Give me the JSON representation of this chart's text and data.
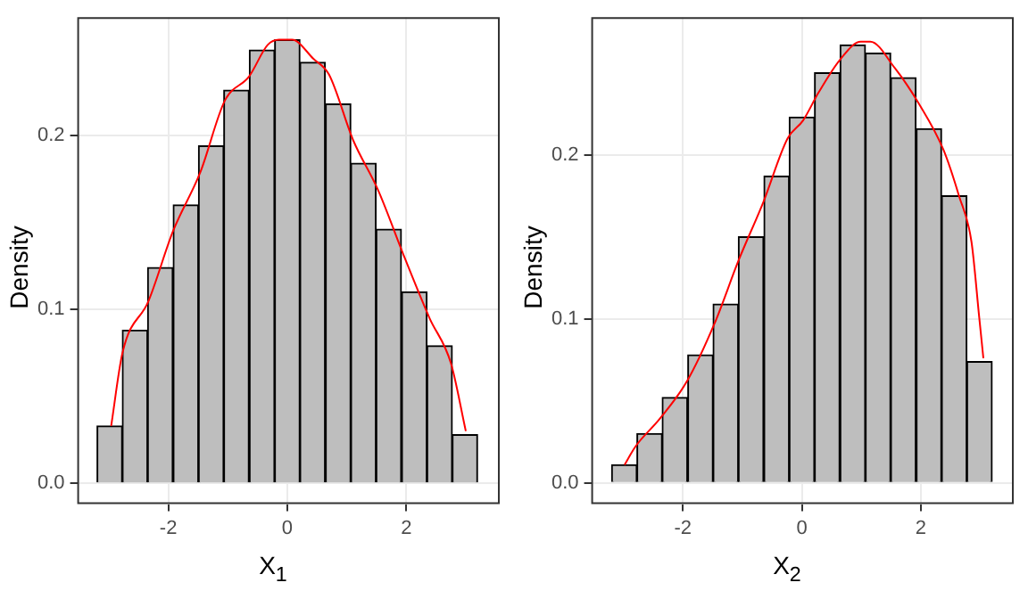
{
  "chart_data": [
    {
      "type": "histogram",
      "xlabel": "X$_{1}$",
      "ylabel": "Density",
      "bins": [
        -3.2,
        -2.77,
        -2.35,
        -1.92,
        -1.49,
        -1.07,
        -0.64,
        -0.21,
        0.21,
        0.64,
        1.07,
        1.49,
        1.92,
        2.35,
        2.77,
        3.2
      ],
      "series": [
        {
          "color": "#bebebe",
          "values": [
            0.033,
            0.088,
            0.124,
            0.16,
            0.194,
            0.226,
            0.249,
            0.255,
            0.242,
            0.218,
            0.184,
            0.146,
            0.11,
            0.079,
            0.028
          ]
        },
        {
          "type": "line",
          "color": "#ff0000",
          "x": [
            -2.96,
            -2.77,
            -2.33,
            -1.92,
            -1.46,
            -1.05,
            -0.64,
            -0.33,
            -0.14,
            0.08,
            0.44,
            0.7,
            1.11,
            1.52,
            1.98,
            2.39,
            2.75,
            3.0
          ],
          "values": [
            0.033,
            0.075,
            0.105,
            0.145,
            0.179,
            0.22,
            0.234,
            0.252,
            0.255,
            0.255,
            0.244,
            0.235,
            0.197,
            0.169,
            0.129,
            0.095,
            0.069,
            0.03
          ]
        }
      ],
      "xlim": [
        -3.53,
        3.57
      ],
      "xticks": [
        -2,
        0,
        2
      ],
      "ylim": [
        -0.012,
        0.268
      ],
      "yticks": [
        {
          "value": 0,
          "label": "0.0"
        },
        {
          "value": 0.1,
          "label": "0.1"
        },
        {
          "value": 0.2,
          "label": "0.2"
        }
      ],
      "grid": true,
      "legend": false
    },
    {
      "type": "histogram",
      "xlabel": "X$_{2}$",
      "ylabel": "Density",
      "bins": [
        -3.2,
        -2.77,
        -2.35,
        -1.92,
        -1.49,
        -1.07,
        -0.64,
        -0.21,
        0.21,
        0.64,
        1.07,
        1.49,
        1.92,
        2.35,
        2.77,
        3.2
      ],
      "series": [
        {
          "color": "#bebebe",
          "values": [
            0.011,
            0.03,
            0.052,
            0.078,
            0.109,
            0.15,
            0.187,
            0.223,
            0.25,
            0.267,
            0.262,
            0.247,
            0.216,
            0.175,
            0.074
          ]
        },
        {
          "type": "line",
          "color": "#ff0000",
          "x": [
            -2.98,
            -2.8,
            -2.39,
            -1.93,
            -1.47,
            -1.06,
            -0.65,
            -0.24,
            0.02,
            0.28,
            0.64,
            0.99,
            1.15,
            1.56,
            1.97,
            2.38,
            2.64,
            2.85,
            2.98,
            3.05
          ],
          "values": [
            0.011,
            0.022,
            0.039,
            0.062,
            0.097,
            0.136,
            0.171,
            0.21,
            0.221,
            0.238,
            0.258,
            0.269,
            0.269,
            0.253,
            0.231,
            0.203,
            0.175,
            0.147,
            0.101,
            0.076
          ]
        }
      ],
      "xlim": [
        -3.54,
        3.56
      ],
      "xticks": [
        -2,
        0,
        2
      ],
      "ylim": [
        -0.013,
        0.284
      ],
      "yticks": [
        {
          "value": 0,
          "label": "0.0"
        },
        {
          "value": 0.1,
          "label": "0.1"
        },
        {
          "value": 0.2,
          "label": "0.2"
        }
      ],
      "grid": true,
      "legend": false
    }
  ]
}
